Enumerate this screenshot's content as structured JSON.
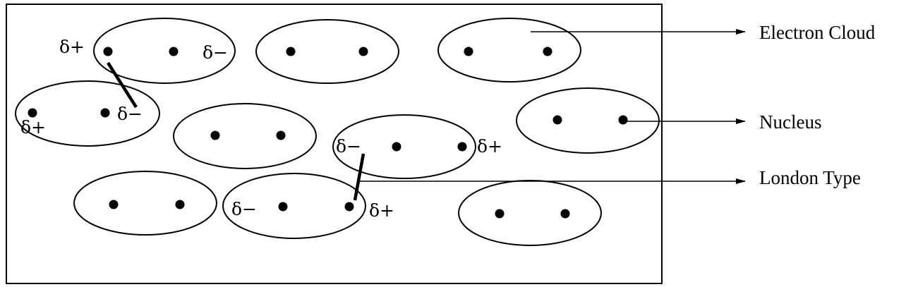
{
  "labels": {
    "electron_cloud": "Electron Cloud",
    "nucleus": "Nucleus",
    "london_type": "London Type"
  },
  "charges": {
    "partial_positive": "δ+",
    "partial_negative": "δ−"
  },
  "colors": {
    "ink": "#000000",
    "background": "#ffffff"
  }
}
